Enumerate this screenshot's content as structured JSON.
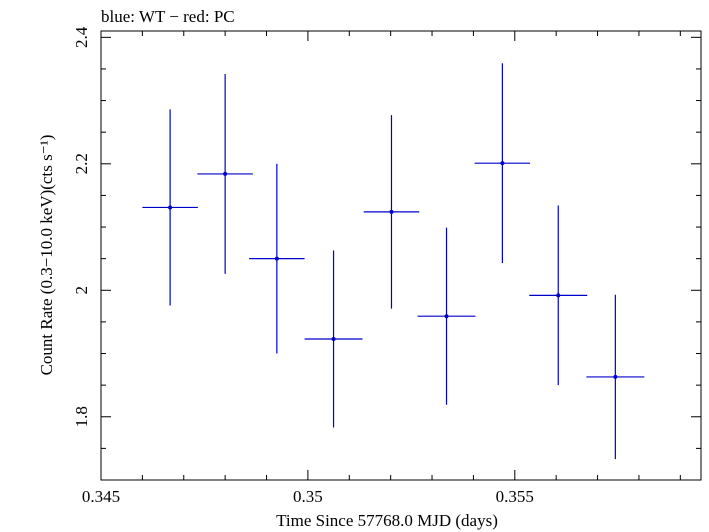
{
  "chart_data": {
    "type": "scatter",
    "title": "blue: WT − red: PC",
    "xlabel": "Time Since 57768.0 MJD (days)",
    "ylabel": "Count Rate (0.3−10.0 keV)(cts s⁻¹)",
    "xlim": [
      0.345,
      0.3595
    ],
    "ylim": [
      1.7,
      2.41
    ],
    "x_ticks": [
      {
        "value": 0.345,
        "label": "0.345"
      },
      {
        "value": 0.35,
        "label": "0.35"
      },
      {
        "value": 0.355,
        "label": "0.355"
      }
    ],
    "y_ticks": [
      {
        "value": 1.8,
        "label": "1.8"
      },
      {
        "value": 2.0,
        "label": "2"
      },
      {
        "value": 2.2,
        "label": "2.2"
      },
      {
        "value": 2.4,
        "label": "2.4"
      }
    ],
    "series": [
      {
        "color": "#0000cc",
        "points": [
          {
            "x": 0.34667,
            "y": 2.131,
            "xerr": 0.00067,
            "yerr_low": 0.155,
            "yerr_high": 0.155
          },
          {
            "x": 0.348,
            "y": 2.184,
            "xerr": 0.00067,
            "yerr_low": 0.158,
            "yerr_high": 0.158
          },
          {
            "x": 0.34925,
            "y": 2.05,
            "xerr": 0.00067,
            "yerr_low": 0.15,
            "yerr_high": 0.15
          },
          {
            "x": 0.35062,
            "y": 1.923,
            "xerr": 0.0007,
            "yerr_low": 0.14,
            "yerr_high": 0.14
          },
          {
            "x": 0.35202,
            "y": 2.124,
            "xerr": 0.00067,
            "yerr_low": 0.153,
            "yerr_high": 0.153
          },
          {
            "x": 0.35335,
            "y": 1.959,
            "xerr": 0.0007,
            "yerr_low": 0.14,
            "yerr_high": 0.14
          },
          {
            "x": 0.3547,
            "y": 2.201,
            "xerr": 0.00067,
            "yerr_low": 0.158,
            "yerr_high": 0.158
          },
          {
            "x": 0.35605,
            "y": 1.992,
            "xerr": 0.0007,
            "yerr_low": 0.142,
            "yerr_high": 0.142
          },
          {
            "x": 0.35743,
            "y": 1.863,
            "xerr": 0.0007,
            "yerr_low": 0.13,
            "yerr_high": 0.13
          }
        ]
      }
    ]
  }
}
